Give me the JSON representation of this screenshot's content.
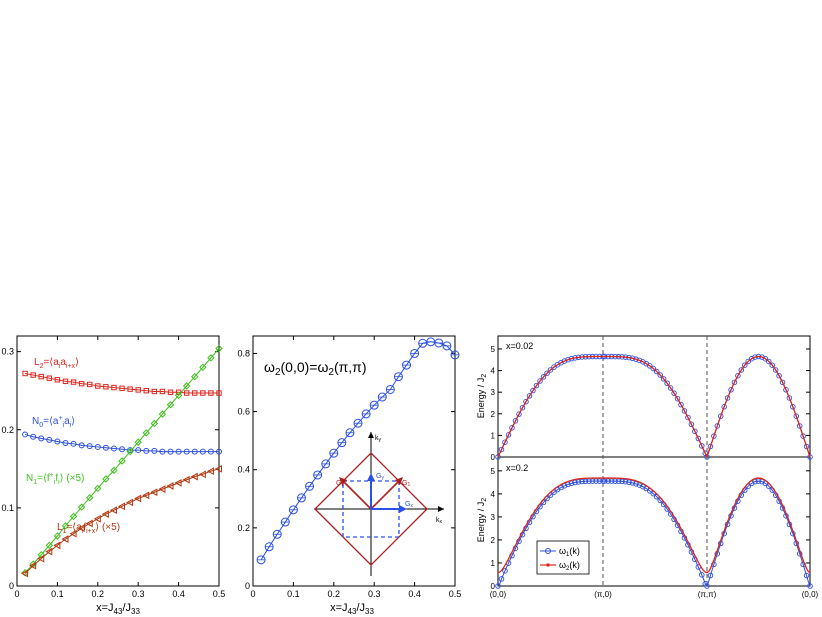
{
  "colors": {
    "red": "#e0251c",
    "blue": "#2b4fe0",
    "green": "#3fc21c",
    "brown": "#b3360f",
    "darkred": "#b01c1c",
    "blue_arrow": "#2a50e8"
  },
  "chart_data": [
    {
      "type": "line",
      "panel": "left",
      "xlabel": "x=J43/J33",
      "ylabel": "",
      "xlim": [
        0,
        0.5
      ],
      "ylim": [
        0,
        0.32
      ],
      "xticks": [
        "0",
        "0.1",
        "0.2",
        "0.3",
        "0.4",
        "0.5"
      ],
      "yticks": [
        "0",
        "0.1",
        "0.2",
        "0.3"
      ],
      "series": [
        {
          "name": "L2=⟨aiai+x⟩",
          "color_key": "red",
          "marker": "square",
          "x": [
            0.02,
            0.04,
            0.06,
            0.08,
            0.1,
            0.12,
            0.14,
            0.16,
            0.18,
            0.2,
            0.22,
            0.24,
            0.26,
            0.28,
            0.3,
            0.32,
            0.34,
            0.36,
            0.38,
            0.4,
            0.42,
            0.44,
            0.46,
            0.48,
            0.5
          ],
          "values": [
            0.272,
            0.27,
            0.268,
            0.266,
            0.264,
            0.262,
            0.261,
            0.259,
            0.258,
            0.256,
            0.255,
            0.254,
            0.253,
            0.252,
            0.251,
            0.25,
            0.249,
            0.249,
            0.248,
            0.248,
            0.247,
            0.247,
            0.247,
            0.247,
            0.247
          ]
        },
        {
          "name": "N0=⟨ai+ai⟩",
          "color_key": "blue",
          "marker": "circle",
          "x": [
            0.02,
            0.04,
            0.06,
            0.08,
            0.1,
            0.12,
            0.14,
            0.16,
            0.18,
            0.2,
            0.22,
            0.24,
            0.26,
            0.28,
            0.3,
            0.32,
            0.34,
            0.36,
            0.38,
            0.4,
            0.42,
            0.44,
            0.46,
            0.48,
            0.5
          ],
          "values": [
            0.194,
            0.191,
            0.189,
            0.187,
            0.185,
            0.183,
            0.182,
            0.18,
            0.179,
            0.178,
            0.177,
            0.176,
            0.175,
            0.174,
            0.174,
            0.173,
            0.173,
            0.172,
            0.172,
            0.172,
            0.172,
            0.172,
            0.172,
            0.172,
            0.172
          ]
        },
        {
          "name": "N1=⟨fi+fi⟩ (×5)",
          "color_key": "green",
          "marker": "diamond",
          "x": [
            0.02,
            0.04,
            0.06,
            0.08,
            0.1,
            0.12,
            0.14,
            0.16,
            0.18,
            0.2,
            0.22,
            0.24,
            0.26,
            0.28,
            0.3,
            0.32,
            0.34,
            0.36,
            0.38,
            0.4,
            0.42,
            0.44,
            0.46,
            0.48,
            0.5
          ],
          "values": [
            0.017,
            0.028,
            0.04,
            0.052,
            0.064,
            0.077,
            0.089,
            0.101,
            0.113,
            0.125,
            0.137,
            0.148,
            0.16,
            0.172,
            0.184,
            0.196,
            0.208,
            0.22,
            0.232,
            0.244,
            0.256,
            0.268,
            0.28,
            0.292,
            0.304
          ]
        },
        {
          "name": "L1=⟨aifi+x⟩ (×5)",
          "color_key": "brown",
          "marker": "triangle-left",
          "x": [
            0.02,
            0.04,
            0.06,
            0.08,
            0.1,
            0.12,
            0.14,
            0.16,
            0.18,
            0.2,
            0.22,
            0.24,
            0.26,
            0.28,
            0.3,
            0.32,
            0.34,
            0.36,
            0.38,
            0.4,
            0.42,
            0.44,
            0.46,
            0.48,
            0.5
          ],
          "values": [
            0.016,
            0.026,
            0.035,
            0.044,
            0.052,
            0.06,
            0.067,
            0.074,
            0.08,
            0.086,
            0.092,
            0.097,
            0.102,
            0.107,
            0.112,
            0.116,
            0.12,
            0.124,
            0.128,
            0.132,
            0.136,
            0.14,
            0.143,
            0.147,
            0.15
          ]
        }
      ],
      "labels": [
        {
          "text_main": "L",
          "sub": "2",
          "rest": "=⟨a",
          "sub2": "i",
          "mid": "a",
          "sub3": "i+x",
          "end": "⟩",
          "color_key": "red"
        },
        {
          "text_main": "N",
          "sub": "0",
          "rest": "=⟨a",
          "sup": "+",
          "sub2": "i",
          "mid": "a",
          "sub3": "i",
          "end": "⟩",
          "color_key": "blue"
        },
        {
          "text_main": "N",
          "sub": "1",
          "rest": "=⟨f",
          "sup": "+",
          "sub2": "i",
          "mid": "f",
          "sub3": "i",
          "end": "⟩ (×5)",
          "color_key": "green"
        },
        {
          "text_main": "L",
          "sub": "1",
          "rest": "=⟨a",
          "sub2": "i",
          "mid": "f",
          "sub3": "i+x",
          "end": "⟩ (×5)",
          "color_key": "brown"
        }
      ]
    },
    {
      "type": "line",
      "panel": "middle",
      "title": "ω2(0,0)=ω2(π,π)",
      "xlabel": "x=J43/J33",
      "xlim": [
        0,
        0.5
      ],
      "ylim": [
        0,
        0.86
      ],
      "xticks": [
        "0",
        "0.1",
        "0.2",
        "0.3",
        "0.4",
        "0.5"
      ],
      "yticks": [
        "0",
        "0.2",
        "0.4",
        "0.6",
        "0.8"
      ],
      "series": [
        {
          "name": "",
          "color_key": "blue",
          "marker": "circle",
          "x": [
            0.02,
            0.04,
            0.06,
            0.08,
            0.1,
            0.12,
            0.14,
            0.16,
            0.18,
            0.2,
            0.22,
            0.24,
            0.26,
            0.28,
            0.3,
            0.32,
            0.34,
            0.36,
            0.38,
            0.4,
            0.42,
            0.44,
            0.46,
            0.48,
            0.5
          ],
          "values": [
            0.09,
            0.135,
            0.178,
            0.22,
            0.262,
            0.303,
            0.343,
            0.382,
            0.42,
            0.457,
            0.493,
            0.527,
            0.56,
            0.592,
            0.622,
            0.65,
            0.676,
            0.72,
            0.76,
            0.8,
            0.835,
            0.84,
            0.836,
            0.826,
            0.795
          ]
        }
      ],
      "inset": {
        "kx_label": "kx",
        "ky_label": "ky",
        "g1": "G1",
        "g2": "G2",
        "gx": "Gx",
        "gy": "Gy"
      }
    },
    {
      "type": "line",
      "panel": "right",
      "ylabel": "Energy / J2",
      "xticks": [
        "(0,0)",
        "(π,0)",
        "(π,π)",
        "(0,0)"
      ],
      "subplots": [
        {
          "label": "x=0.02",
          "ylim": [
            0,
            5.6
          ],
          "yticks": [
            "0",
            "1",
            "2",
            "3",
            "4",
            "5"
          ]
        },
        {
          "label": "x=0.2",
          "ylim": [
            0,
            5.6
          ],
          "yticks": [
            "0",
            "1",
            "2",
            "3",
            "4",
            "5"
          ]
        }
      ],
      "legend": {
        "placement": "bottom-left",
        "entries": [
          "ω1(k)",
          "ω2(k)"
        ]
      }
    }
  ]
}
